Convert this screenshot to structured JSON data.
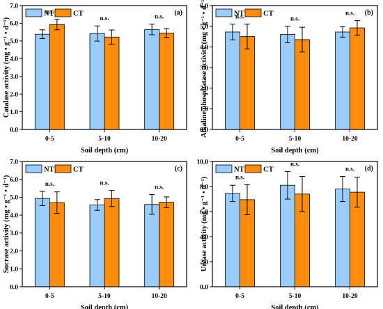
{
  "colors": {
    "NT": "#99CCFF",
    "CT": "#FF8C0A",
    "axis": "#000000"
  },
  "chart_data": [
    {
      "type": "bar",
      "panel_label": "(a)",
      "categories": [
        "0-5",
        "5-10",
        "10-20"
      ],
      "xlabel": "Soil depth (cm)",
      "ylabel": "Catalase activity (mg • g⁻¹ • d⁻¹)",
      "ylim": [
        0,
        7.0
      ],
      "yticks": [
        "0.0",
        "1.0",
        "2.0",
        "3.0",
        "4.0",
        "5.0",
        "6.0",
        "7.0"
      ],
      "legend": [
        "NT",
        "CT"
      ],
      "significance": [
        "n.s.",
        "n.s.",
        "n.s."
      ],
      "series": [
        {
          "name": "NT",
          "values": [
            5.38,
            5.42,
            5.65
          ],
          "errors": [
            0.25,
            0.43,
            0.3
          ]
        },
        {
          "name": "CT",
          "values": [
            5.93,
            5.22,
            5.45
          ],
          "errors": [
            0.3,
            0.4,
            0.25
          ]
        }
      ]
    },
    {
      "type": "bar",
      "panel_label": "(b)",
      "categories": [
        "0-5",
        "5-10",
        "10-20"
      ],
      "xlabel": "Soil depth (cm)",
      "ylabel": "Alkaline phosphatase activity (mg • g⁻¹ • d⁻¹)",
      "ylim": [
        0,
        6.0
      ],
      "yticks": [
        "0.0",
        "1.0",
        "2.0",
        "3.0",
        "4.0",
        "5.0",
        "6.0"
      ],
      "legend": [
        "NT",
        "CT"
      ],
      "significance": [
        "n.s.",
        "n.s.",
        "n.s."
      ],
      "series": [
        {
          "name": "NT",
          "values": [
            4.72,
            4.6,
            4.72
          ],
          "errors": [
            0.38,
            0.4,
            0.25
          ]
        },
        {
          "name": "CT",
          "values": [
            4.5,
            4.35,
            4.92
          ],
          "errors": [
            0.6,
            0.6,
            0.35
          ]
        }
      ]
    },
    {
      "type": "bar",
      "panel_label": "(c)",
      "categories": [
        "0-5",
        "5-10",
        "10-20"
      ],
      "xlabel": "Soil depth (cm)",
      "ylabel": "Sucrase activity (mg • g⁻¹ • d⁻¹)",
      "ylim": [
        0,
        7.0
      ],
      "yticks": [
        "0.0",
        "1.0",
        "2.0",
        "3.0",
        "4.0",
        "5.0",
        "6.0",
        "7.0"
      ],
      "legend": [
        "NT",
        "CT"
      ],
      "significance": [
        "n.s.",
        "n.s.",
        "n.s."
      ],
      "series": [
        {
          "name": "NT",
          "values": [
            4.93,
            4.57,
            4.6
          ],
          "errors": [
            0.4,
            0.3,
            0.55
          ]
        },
        {
          "name": "CT",
          "values": [
            4.7,
            4.93,
            4.72
          ],
          "errors": [
            0.6,
            0.45,
            0.3
          ]
        }
      ]
    },
    {
      "type": "bar",
      "panel_label": "(d)",
      "categories": [
        "0-5",
        "5-10",
        "10-20"
      ],
      "xlabel": "Soil depth (cm)",
      "ylabel": "Urease activity (mg • g⁻¹ • d⁻¹)",
      "ylim": [
        0,
        10.0
      ],
      "yticks": [
        "0.0",
        "2.0",
        "4.0",
        "6.0",
        "8.0",
        "10.0"
      ],
      "legend": [
        "NT",
        "CT"
      ],
      "significance": [
        "n.s.",
        "n.s.",
        "n.s."
      ],
      "series": [
        {
          "name": "NT",
          "values": [
            7.45,
            8.1,
            7.8
          ],
          "errors": [
            0.65,
            1.1,
            1.0
          ]
        },
        {
          "name": "CT",
          "values": [
            6.95,
            7.4,
            7.55
          ],
          "errors": [
            1.2,
            1.4,
            1.2
          ]
        }
      ]
    }
  ]
}
